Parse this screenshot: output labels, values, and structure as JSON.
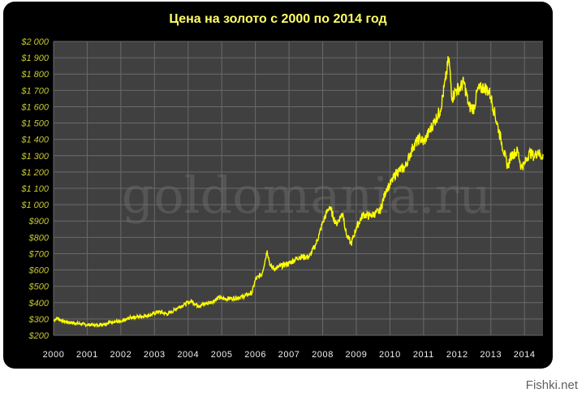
{
  "chart_data": {
    "type": "line",
    "title": "Цена на золото с 2000 по 2014 год",
    "xlabel": "",
    "ylabel": "",
    "ylim": [
      200,
      2000
    ],
    "xlim": [
      2000,
      2014.55
    ],
    "y_ticks": [
      "$2 000",
      "$1 900",
      "$1 800",
      "$1 700",
      "$1 600",
      "$1 500",
      "$1 400",
      "$1 300",
      "$1 200",
      "$1 100",
      "$1 000",
      "$900",
      "$800",
      "$700",
      "$600",
      "$500",
      "$400",
      "$300",
      "$200"
    ],
    "x_ticks": [
      "2000",
      "2001",
      "2002",
      "2003",
      "2004",
      "2005",
      "2006",
      "2007",
      "2008",
      "2009",
      "2010",
      "2011",
      "2012",
      "2013",
      "2014"
    ],
    "grid": true,
    "series": [
      {
        "x": [
          2000.0,
          2000.1,
          2000.3,
          2000.6,
          2000.9,
          2001.0,
          2001.3,
          2001.6,
          2001.8,
          2002.0,
          2002.3,
          2002.6,
          2002.9,
          2003.1,
          2003.4,
          2003.7,
          2003.9,
          2004.1,
          2004.3,
          2004.7,
          2004.9,
          2005.0,
          2005.3,
          2005.6,
          2005.9,
          2006.0,
          2006.2,
          2006.35,
          2006.45,
          2006.6,
          2006.9,
          2007.0,
          2007.3,
          2007.6,
          2007.8,
          2007.9,
          2008.0,
          2008.2,
          2008.4,
          2008.6,
          2008.7,
          2008.85,
          2009.0,
          2009.2,
          2009.4,
          2009.7,
          2009.9,
          2010.0,
          2010.2,
          2010.45,
          2010.7,
          2010.9,
          2011.0,
          2011.3,
          2011.5,
          2011.65,
          2011.75,
          2011.85,
          2011.95,
          2012.1,
          2012.2,
          2012.35,
          2012.5,
          2012.6,
          2012.8,
          2012.95,
          2013.0,
          2013.1,
          2013.3,
          2013.5,
          2013.6,
          2013.8,
          2013.9,
          2014.0,
          2014.15,
          2014.3,
          2014.4,
          2014.5,
          2014.55
        ],
        "y": [
          290,
          305,
          285,
          275,
          268,
          265,
          262,
          275,
          285,
          280,
          310,
          315,
          325,
          345,
          330,
          370,
          390,
          410,
          380,
          405,
          430,
          425,
          425,
          435,
          460,
          540,
          580,
          720,
          620,
          610,
          635,
          640,
          680,
          680,
          760,
          820,
          890,
          990,
          880,
          950,
          820,
          760,
          860,
          940,
          930,
          960,
          1100,
          1120,
          1200,
          1230,
          1360,
          1410,
          1380,
          1500,
          1580,
          1760,
          1900,
          1650,
          1700,
          1720,
          1750,
          1600,
          1590,
          1700,
          1720,
          1690,
          1660,
          1570,
          1400,
          1230,
          1300,
          1330,
          1230,
          1250,
          1320,
          1295,
          1330,
          1290,
          1310
        ]
      }
    ],
    "watermark": "goldomania.ru",
    "colors": {
      "line": "#ffff00",
      "plot_bg": "#404040",
      "grid": "#6a6a6a",
      "panel": "#000000"
    }
  },
  "credit": "Fishki.net"
}
